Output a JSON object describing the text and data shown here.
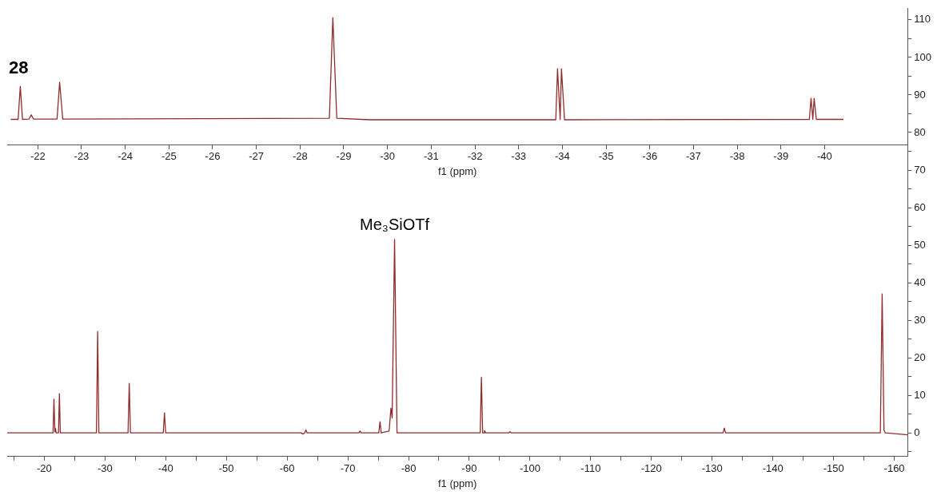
{
  "chart_data": {
    "type": "line",
    "xlabel": "f1 (ppm)",
    "x2label": "f1 (ppm)",
    "annotations": [
      "28",
      {
        "text": "Me₃SiOTf",
        "x": -77.7,
        "y": 51.5
      }
    ],
    "xlim": [
      -13.9,
      -162.2
    ],
    "xticks": [
      -20,
      {
        "value": -25,
        "label": null
      },
      -30,
      {
        "value": -35,
        "label": null
      },
      -40,
      {
        "value": -45,
        "label": null
      },
      -50,
      {
        "value": -55,
        "label": null
      },
      -60,
      {
        "value": -65,
        "label": null
      },
      -70,
      {
        "value": -75,
        "label": null
      },
      -80,
      {
        "value": -85,
        "label": null
      },
      -90,
      {
        "value": -95,
        "label": null
      },
      -100,
      {
        "value": -105,
        "label": null
      },
      -110,
      {
        "value": -115,
        "label": null
      },
      -120,
      {
        "value": -125,
        "label": null
      },
      -130,
      {
        "value": -135,
        "label": null
      },
      -140,
      {
        "value": -145,
        "label": null
      },
      -150,
      {
        "value": -155,
        "label": null
      },
      -160,
      {
        "value": -15,
        "label": null
      }
    ],
    "x2lim": [
      -21.3,
      -41.9
    ],
    "x2ticks": [
      -22,
      -23,
      -24,
      -25,
      -26,
      -27,
      -28,
      -29,
      -30,
      -31,
      -32,
      -33,
      -34,
      -35,
      -36,
      -37,
      -38,
      -39,
      -40
    ],
    "ylim": [
      -6.3,
      113
    ],
    "yticks": [
      {
        "value": -5,
        "label": null
      },
      0,
      {
        "value": 5,
        "label": null
      },
      10,
      {
        "value": 15,
        "label": null
      },
      20,
      {
        "value": 25,
        "label": null
      },
      30,
      {
        "value": 35,
        "label": null
      },
      40,
      {
        "value": 45,
        "label": null
      },
      50,
      {
        "value": 55,
        "label": null
      },
      60,
      {
        "value": 65,
        "label": null
      },
      70,
      {
        "value": 75,
        "label": null
      },
      80,
      {
        "value": 85,
        "label": null
      },
      90,
      {
        "value": 95,
        "label": null
      },
      100,
      {
        "value": 105,
        "label": null
      },
      110
    ],
    "legend": false,
    "marker": "none",
    "line_style": "solid",
    "series": [
      {
        "color": "#922b2b",
        "x": [
          -13.9,
          -21.45,
          -21.6,
          -21.75,
          -21.85,
          -21.95,
          -22.35,
          -22.5,
          -22.65,
          -28.6,
          -28.8,
          -29.0,
          -33.8,
          -34.0,
          -34.2,
          -39.6,
          -39.8,
          -40.0,
          -62.3,
          -62.6,
          -62.9,
          -63.1,
          -63.3,
          -71.8,
          -72.0,
          -72.2,
          -75.1,
          -75.3,
          -75.5,
          -76.8,
          -77.1,
          -77.3,
          -77.7,
          -78.1,
          -91.8,
          -92.0,
          -92.2,
          -92.4,
          -92.5,
          -92.7,
          -96.5,
          -96.7,
          -96.9,
          -131.8,
          -132.0,
          -132.2,
          -157.7,
          -158.0,
          -158.3,
          -158.5,
          -162.2
        ],
        "values": [
          0,
          0,
          9,
          0.3,
          1.2,
          0,
          0,
          10.4,
          0,
          0,
          27,
          0,
          0,
          13.2,
          0,
          0,
          5.3,
          0,
          0,
          -0.3,
          0,
          0.8,
          0,
          0,
          0.5,
          0,
          0,
          3,
          0,
          0.5,
          6.6,
          4,
          51.5,
          0,
          0,
          14.8,
          0,
          0,
          0.6,
          0,
          0,
          0.3,
          0,
          0,
          1.3,
          0,
          0,
          37,
          0.8,
          0,
          -0.5
        ]
      },
      {
        "color": "#922b2b",
        "axis": "x2",
        "x": [
          -21.38,
          -21.55,
          -21.6,
          -21.65,
          -21.8,
          -21.85,
          -21.9,
          -22.44,
          -22.5,
          -22.57,
          -28.67,
          -28.75,
          -28.84,
          -29.6,
          -33.85,
          -33.89,
          -33.95,
          -33.98,
          -34.05,
          -39.65,
          -39.69,
          -39.73,
          -39.76,
          -39.81,
          -40.43
        ],
        "values": [
          83.5,
          83.5,
          92.3,
          83.5,
          83.6,
          84.7,
          83.6,
          83.6,
          93.4,
          83.6,
          83.8,
          110.6,
          83.8,
          83.4,
          83.4,
          97,
          83.5,
          97,
          83.4,
          83.5,
          89.1,
          83.5,
          89.1,
          83.5,
          83.5
        ]
      }
    ]
  }
}
